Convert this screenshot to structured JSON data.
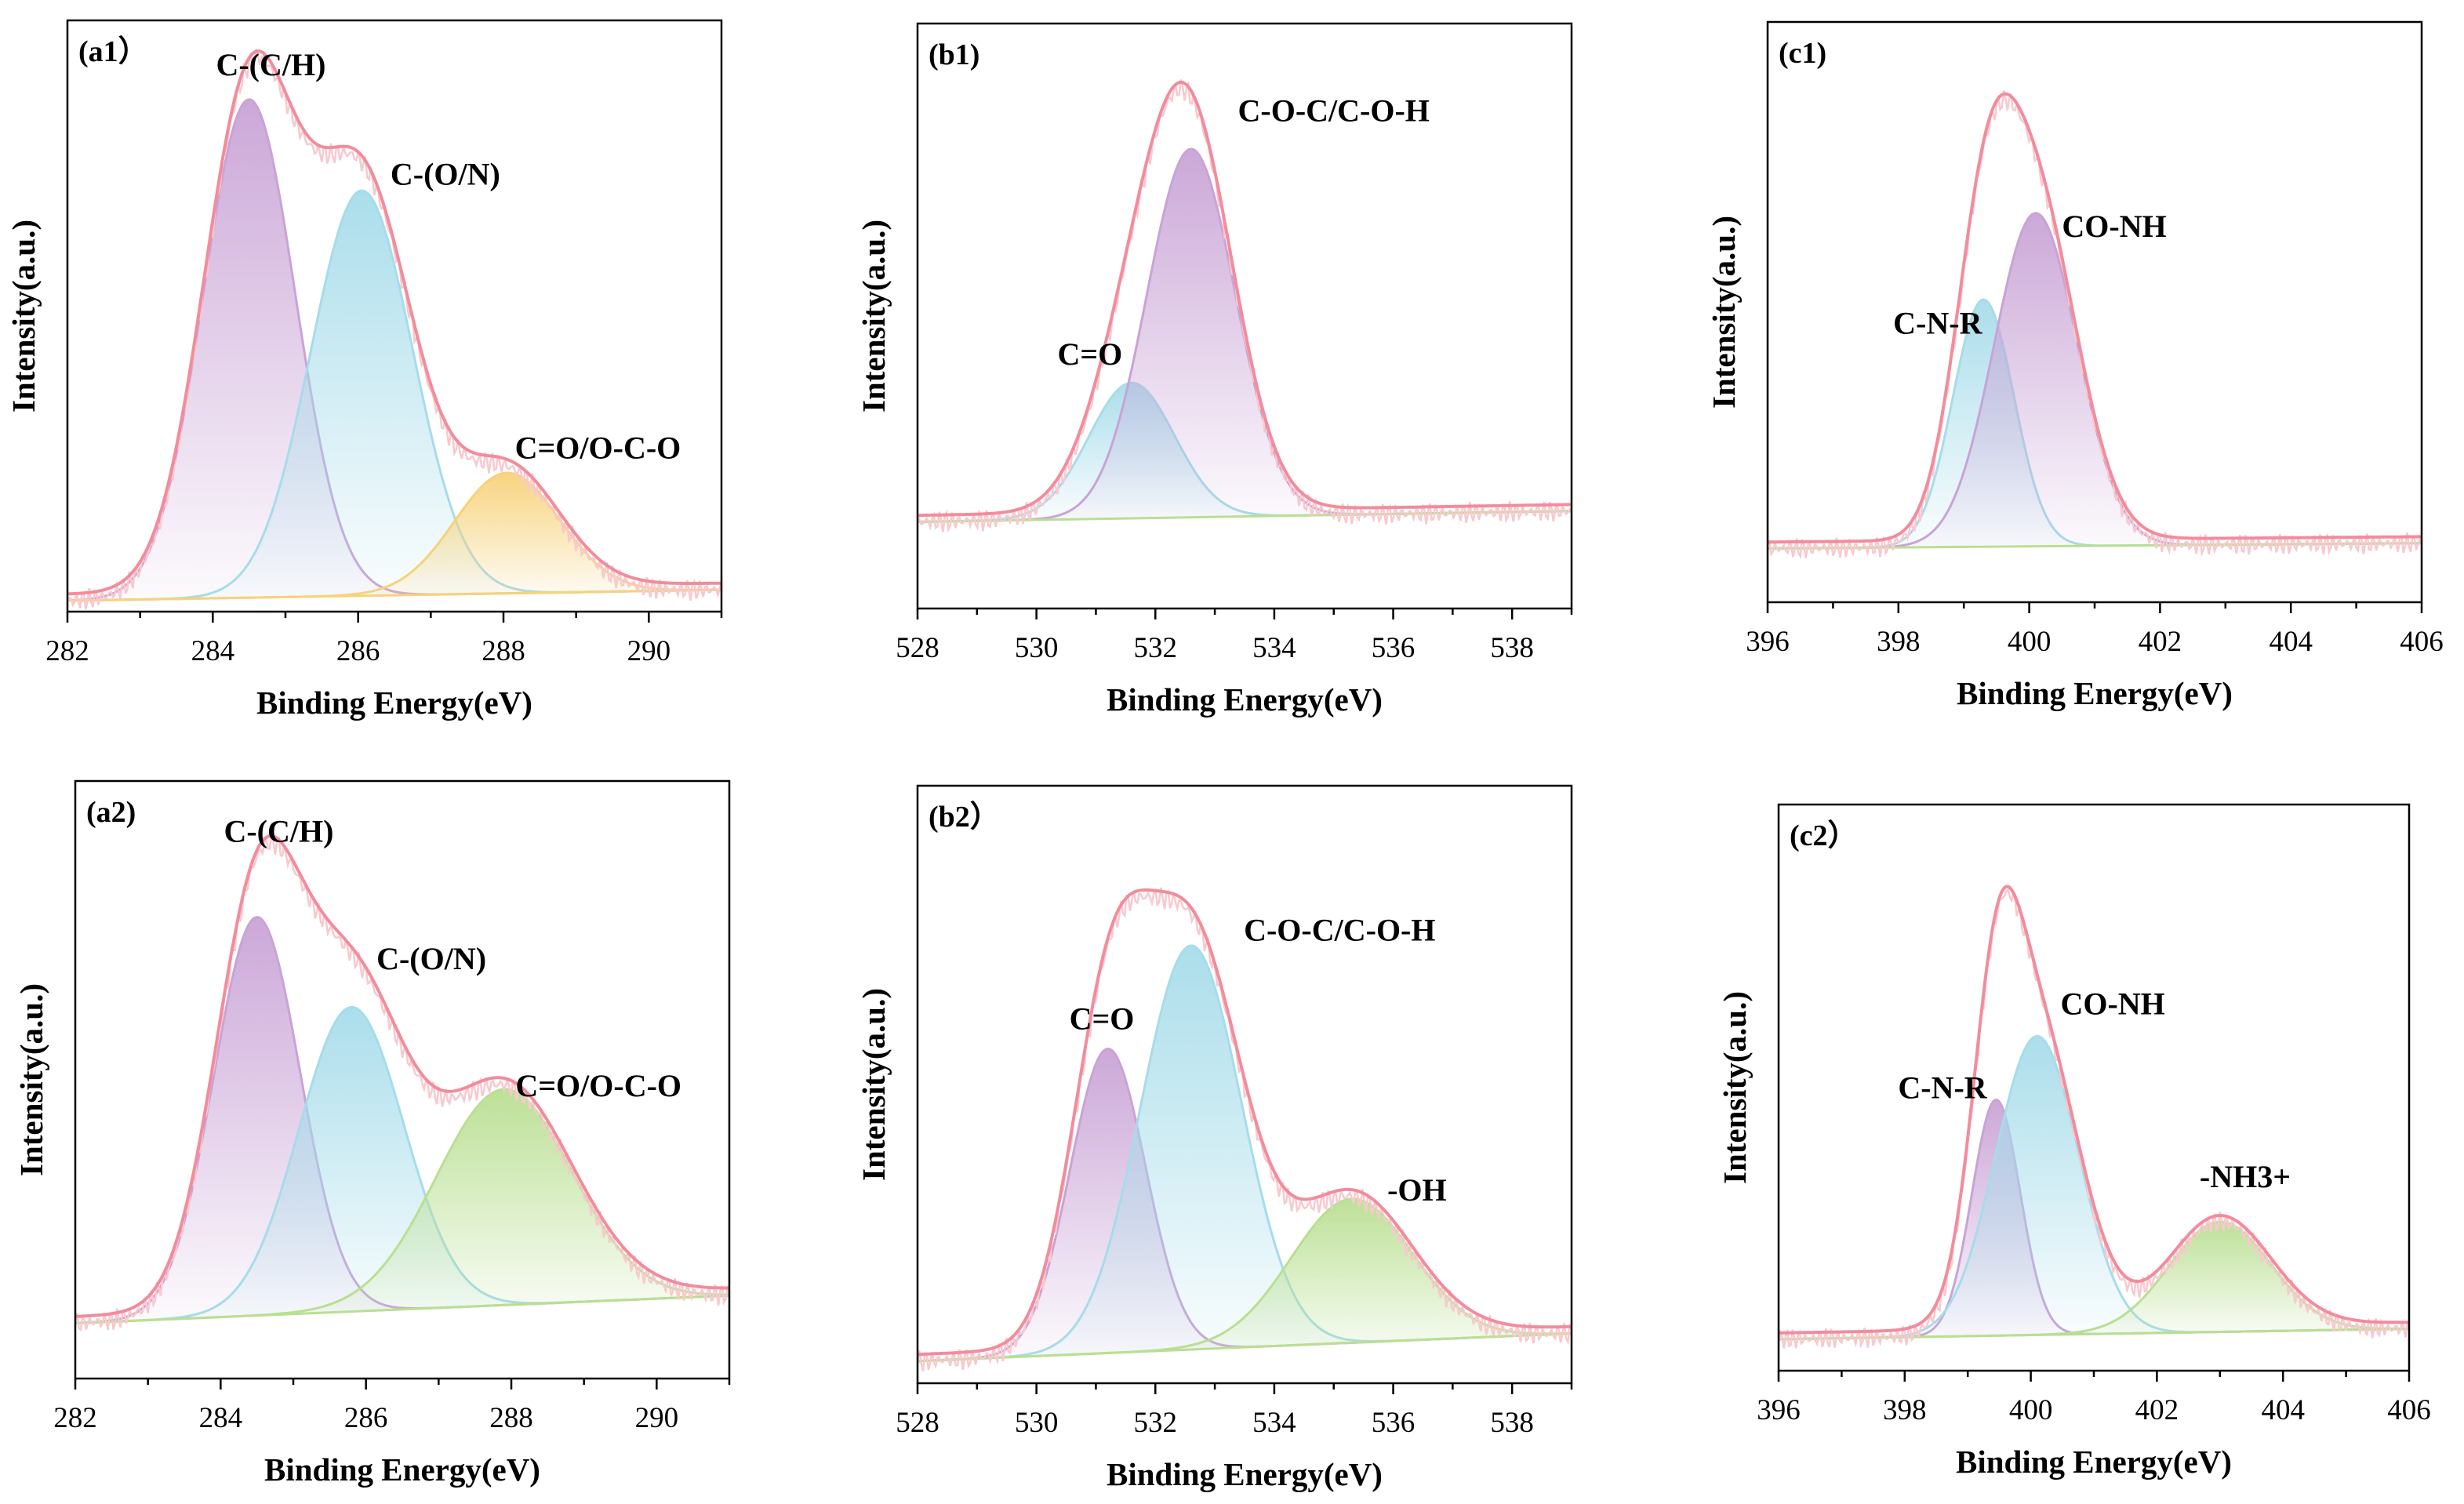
{
  "figure": {
    "type": "xps-grid",
    "colors": {
      "envelope": "#f28c9c",
      "raw": "#f8c9cf",
      "purple": "#c9a3d6",
      "cyan": "#a6dcea",
      "yellow": "#f7d27a",
      "green": "#b9df91",
      "axis": "#000000"
    }
  },
  "chart_data": [
    {
      "type": "line",
      "panel_label": "(a1）",
      "xlabel": "Binding Energy(eV)",
      "ylabel": "Intensity(a.u.)",
      "xlim": [
        282,
        291
      ],
      "x_ticks": [
        282,
        284,
        286,
        288,
        290
      ],
      "ylim": [
        0,
        1.08
      ],
      "baseline": [
        0.02,
        0.04
      ],
      "baseline_color": "yellow",
      "components": [
        {
          "name": "C-(C/H)",
          "center": 284.5,
          "fwhm": 1.5,
          "height": 0.91,
          "color": "purple"
        },
        {
          "name": "C-(O/N)",
          "center": 286.05,
          "fwhm": 1.65,
          "height": 0.74,
          "color": "cyan"
        },
        {
          "name": "C=O/O-C-O",
          "center": 288.05,
          "fwhm": 1.7,
          "height": 0.22,
          "color": "yellow"
        }
      ],
      "annotations": [
        {
          "text": "C-(C/H)",
          "x": 284.8,
          "y": 0.98
        },
        {
          "text": "C-(O/N)",
          "x": 287.2,
          "y": 0.78
        },
        {
          "text": "C=O/O-C-O",
          "x": 289.3,
          "y": 0.28
        }
      ]
    },
    {
      "type": "line",
      "panel_label": "(b1)",
      "xlabel": "Binding Energy(eV)",
      "ylabel": "Intensity(a.u.)",
      "xlim": [
        528,
        539
      ],
      "x_ticks": [
        528,
        530,
        532,
        534,
        536,
        538
      ],
      "ylim": [
        0,
        1.08
      ],
      "baseline": [
        0.16,
        0.18
      ],
      "baseline_color": "green",
      "components": [
        {
          "name": "C=O",
          "center": 531.6,
          "fwhm": 1.7,
          "height": 0.25,
          "color": "cyan"
        },
        {
          "name": "C-O-C/C-O-H",
          "center": 532.6,
          "fwhm": 1.75,
          "height": 0.68,
          "color": "purple"
        }
      ],
      "annotations": [
        {
          "text": "C-O-C/C-O-H",
          "x": 535.0,
          "y": 0.9
        },
        {
          "text": "C=O",
          "x": 530.9,
          "y": 0.45
        }
      ]
    },
    {
      "type": "line",
      "panel_label": "(c1)",
      "xlabel": "Binding Energy(eV)",
      "ylabel": "Intensity(a.u.)",
      "xlim": [
        396,
        406
      ],
      "x_ticks": [
        396,
        398,
        400,
        402,
        404,
        406
      ],
      "ylim": [
        0,
        1.08
      ],
      "baseline": [
        0.1,
        0.11
      ],
      "baseline_color": "green",
      "components": [
        {
          "name": "C-N-R",
          "center": 399.3,
          "fwhm": 1.1,
          "height": 0.46,
          "color": "cyan"
        },
        {
          "name": "CO-NH",
          "center": 400.1,
          "fwhm": 1.5,
          "height": 0.62,
          "color": "purple"
        }
      ],
      "annotations": [
        {
          "text": "CO-NH",
          "x": 401.3,
          "y": 0.68
        },
        {
          "text": "C-N-R",
          "x": 398.6,
          "y": 0.5
        }
      ]
    },
    {
      "type": "line",
      "panel_label": "(a2)",
      "xlabel": "Binding Energy(eV)",
      "ylabel": "Intensity(a.u.)",
      "xlim": [
        282,
        291
      ],
      "x_ticks": [
        282,
        284,
        286,
        288,
        290
      ],
      "ylim": [
        0,
        1.08
      ],
      "baseline": [
        0.1,
        0.15
      ],
      "baseline_color": "green",
      "components": [
        {
          "name": "C-(C/H)",
          "center": 284.5,
          "fwhm": 1.4,
          "height": 0.72,
          "color": "purple"
        },
        {
          "name": "C-(O/N)",
          "center": 285.8,
          "fwhm": 1.7,
          "height": 0.55,
          "color": "cyan"
        },
        {
          "name": "C=O/O-C-O",
          "center": 287.9,
          "fwhm": 2.2,
          "height": 0.39,
          "color": "green"
        }
      ],
      "annotations": [
        {
          "text": "C-(C/H)",
          "x": 284.8,
          "y": 0.97
        },
        {
          "text": "C-(O/N)",
          "x": 286.9,
          "y": 0.74
        },
        {
          "text": "C=O/O-C-O",
          "x": 289.2,
          "y": 0.51
        }
      ]
    },
    {
      "type": "line",
      "panel_label": "(b2）",
      "xlabel": "Binding Energy(eV)",
      "ylabel": "Intensity(a.u.)",
      "xlim": [
        528,
        539
      ],
      "x_ticks": [
        528,
        530,
        532,
        534,
        536,
        538
      ],
      "ylim": [
        0,
        1.08
      ],
      "baseline": [
        0.04,
        0.09
      ],
      "baseline_color": "green",
      "components": [
        {
          "name": "C=O",
          "center": 531.2,
          "fwhm": 1.5,
          "height": 0.55,
          "color": "purple"
        },
        {
          "name": "C-O-C/C-O-H",
          "center": 532.6,
          "fwhm": 2.0,
          "height": 0.73,
          "color": "cyan"
        },
        {
          "name": "-OH",
          "center": 535.3,
          "fwhm": 2.4,
          "height": 0.26,
          "color": "green"
        }
      ],
      "annotations": [
        {
          "text": "C-O-C/C-O-H",
          "x": 535.1,
          "y": 0.8
        },
        {
          "text": "C=O",
          "x": 531.1,
          "y": 0.64
        },
        {
          "text": "-OH",
          "x": 536.4,
          "y": 0.33
        }
      ]
    },
    {
      "type": "line",
      "panel_label": "(c2）",
      "xlabel": "Binding Energy(eV)",
      "ylabel": "Intensity(a.u.)",
      "xlim": [
        396,
        406
      ],
      "x_ticks": [
        396,
        398,
        400,
        402,
        404,
        406
      ],
      "ylim": [
        0,
        1.08
      ],
      "baseline": [
        0.06,
        0.08
      ],
      "baseline_color": "green",
      "components": [
        {
          "name": "C-N-R",
          "center": 399.45,
          "fwhm": 0.9,
          "height": 0.45,
          "color": "purple"
        },
        {
          "name": "CO-NH",
          "center": 400.1,
          "fwhm": 1.55,
          "height": 0.57,
          "color": "cyan"
        },
        {
          "name": "-NH3+",
          "center": 403.0,
          "fwhm": 1.9,
          "height": 0.21,
          "color": "green"
        }
      ],
      "annotations": [
        {
          "text": "CO-NH",
          "x": 401.3,
          "y": 0.68
        },
        {
          "text": "C-N-R",
          "x": 398.6,
          "y": 0.52
        },
        {
          "text": "-NH3+",
          "x": 403.4,
          "y": 0.35
        }
      ]
    }
  ]
}
